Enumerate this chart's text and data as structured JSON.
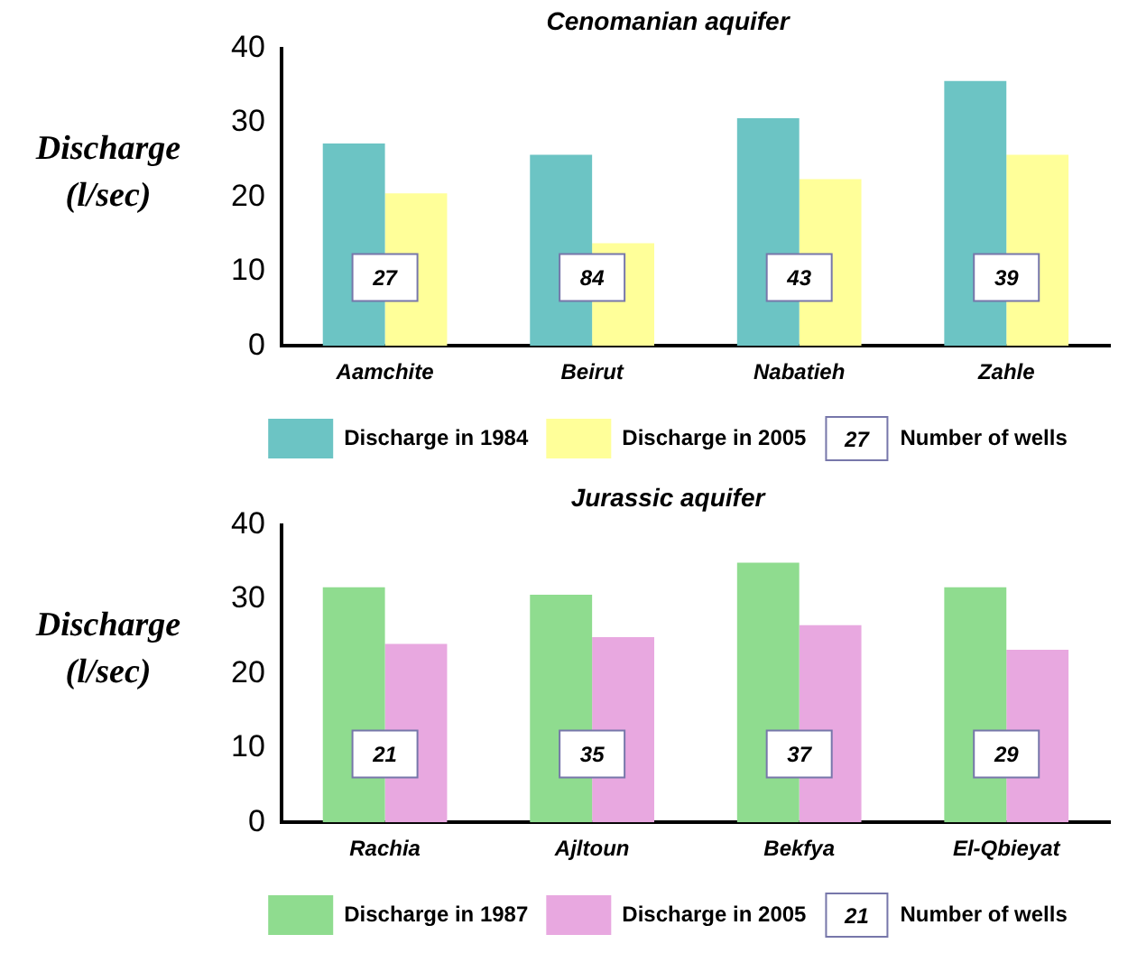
{
  "chart_data": [
    {
      "type": "bar",
      "title": "Cenomanian aquifer",
      "ylabel": "Discharge (l/sec)",
      "categories": [
        "Aamchite",
        "Beirut",
        "Nabatieh",
        "Zahle"
      ],
      "series": [
        {
          "name": "Discharge in 1984",
          "color": "#6cc4c4",
          "values": [
            27.2,
            25.7,
            30.6,
            35.6
          ]
        },
        {
          "name": "Discharge in 2005",
          "color": "#ffff99",
          "values": [
            20.5,
            13.8,
            22.4,
            25.7
          ]
        }
      ],
      "ylim": [
        0,
        40
      ],
      "yticks": [
        0,
        10,
        20,
        30,
        40
      ],
      "grid": false,
      "legend": "bottom",
      "annotations": [
        {
          "text": "27",
          "x": "Aamchite"
        },
        {
          "text": "84",
          "x": "Beirut"
        },
        {
          "text": "43",
          "x": "Nabatieh"
        },
        {
          "text": "39",
          "x": "Zahle"
        },
        "Number of wells"
      ]
    },
    {
      "type": "bar",
      "title": "Jurassic aquifer",
      "ylabel": "Discharge (l/sec)",
      "categories": [
        "Rachia",
        "Ajltoun",
        "Bekfya",
        "El-Qbieyat"
      ],
      "series": [
        {
          "name": "Discharge in 1987",
          "color": "#8fdc8f",
          "values": [
            31.6,
            30.6,
            34.9,
            31.6
          ]
        },
        {
          "name": "Discharge in 2005",
          "color": "#e8a8e0",
          "values": [
            24.0,
            24.9,
            26.5,
            23.2
          ]
        }
      ],
      "ylim": [
        0,
        40
      ],
      "yticks": [
        0,
        10,
        20,
        30,
        40
      ],
      "grid": false,
      "legend": "bottom",
      "annotations": [
        {
          "text": "21",
          "x": "Rachia"
        },
        {
          "text": "35",
          "x": "Ajltoun"
        },
        {
          "text": "37",
          "x": "Bekfya"
        },
        {
          "text": "29",
          "x": "El-Qbieyat"
        },
        "Number of wells"
      ]
    }
  ]
}
